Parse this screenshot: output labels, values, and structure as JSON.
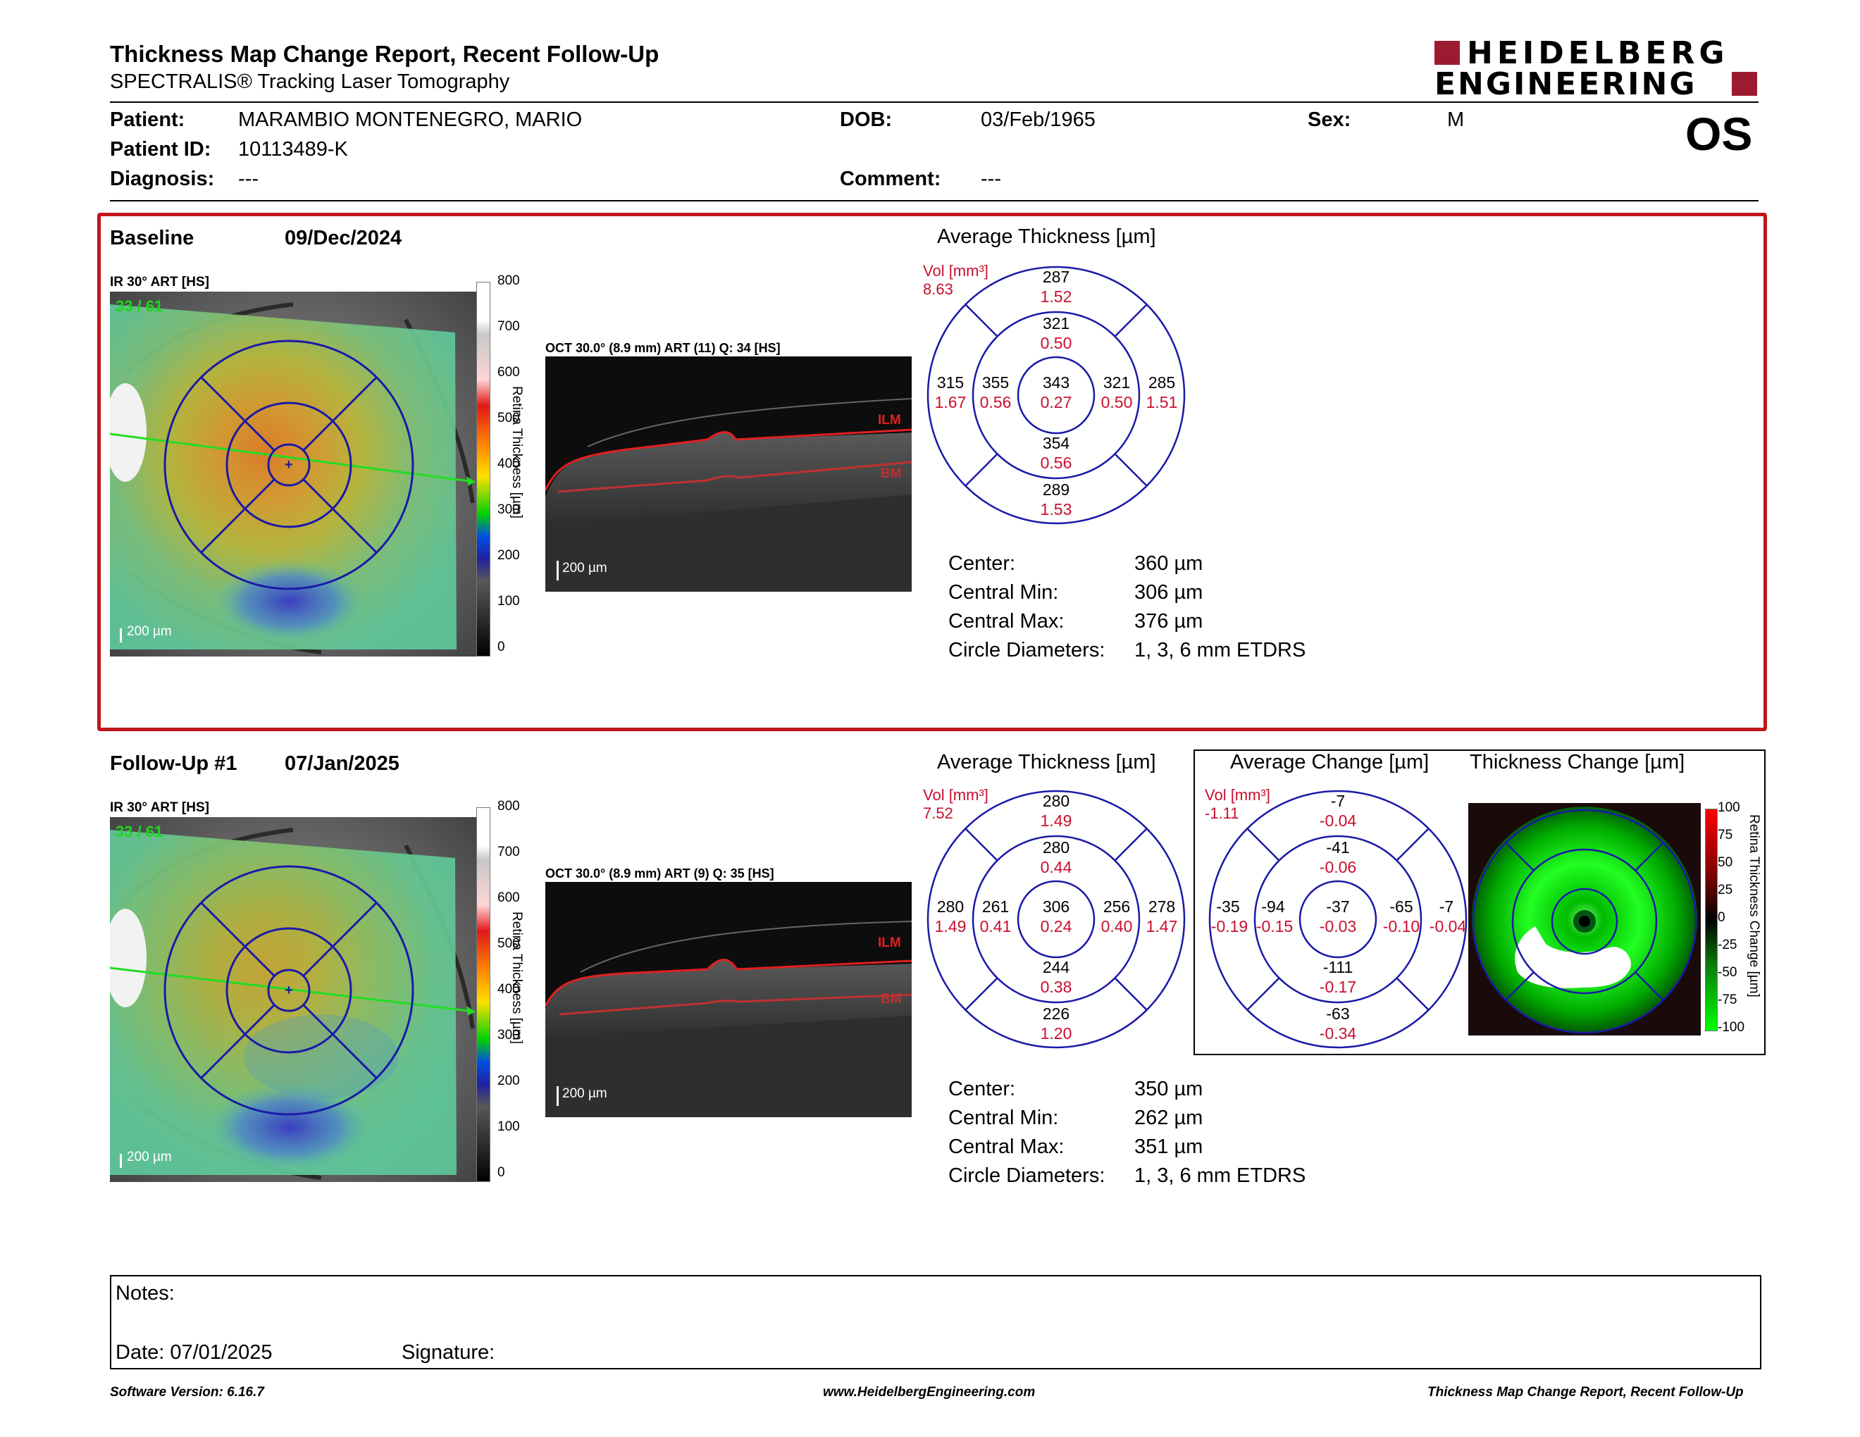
{
  "header": {
    "title": "Thickness Map Change Report, Recent Follow-Up",
    "subtitle": "SPECTRALIS® Tracking Laser Tomography",
    "brand_line1": "HEIDELBERG",
    "brand_line2": "ENGINEERING",
    "eye": "OS"
  },
  "patient": {
    "patient_label": "Patient:",
    "patient_value": "MARAMBIO MONTENEGRO, MARIO",
    "id_label": "Patient ID:",
    "id_value": "10113489-K",
    "diagnosis_label": "Diagnosis:",
    "diagnosis_value": "---",
    "dob_label": "DOB:",
    "dob_value": "03/Feb/1965",
    "comment_label": "Comment:",
    "comment_value": "---",
    "sex_label": "Sex:",
    "sex_value": "M"
  },
  "baseline": {
    "label": "Baseline",
    "date": "09/Dec/2024",
    "ir_label": "IR 30° ART [HS]",
    "ir_overlay": "33 / 61",
    "scale": "200 µm",
    "colorbar_ticks": [
      "800",
      "700",
      "600",
      "500",
      "400",
      "300",
      "200",
      "100",
      "0"
    ],
    "colorbar_title": "Retina Thickness [µm]",
    "oct_label": "OCT 30.0° (8.9 mm) ART (11) Q: 34 [HS]",
    "oct_scale": "200 µm",
    "ilm": "ILM",
    "bm": "BM",
    "avg_title": "Average Thickness [µm]",
    "vol_label": "Vol [mm³]",
    "vol_value": "8.63",
    "etdrs": {
      "outer_sup": [
        "287",
        "1.52"
      ],
      "inner_sup": [
        "321",
        "0.50"
      ],
      "outer_temp": [
        "315",
        "1.67"
      ],
      "inner_temp": [
        "355",
        "0.56"
      ],
      "center": [
        "343",
        "0.27"
      ],
      "inner_nas": [
        "321",
        "0.50"
      ],
      "outer_nas": [
        "285",
        "1.51"
      ],
      "inner_inf": [
        "354",
        "0.56"
      ],
      "outer_inf": [
        "289",
        "1.53"
      ]
    },
    "stats": [
      {
        "label": "Center:",
        "value": "360 µm"
      },
      {
        "label": "Central Min:",
        "value": "306 µm"
      },
      {
        "label": "Central Max:",
        "value": "376 µm"
      },
      {
        "label": "Circle Diameters:",
        "value": "1, 3, 6 mm ETDRS"
      }
    ]
  },
  "followup": {
    "label": "Follow-Up #1",
    "date": "07/Jan/2025",
    "ir_label": "IR 30° ART [HS]",
    "ir_overlay": "33 / 61",
    "scale": "200 µm",
    "colorbar_ticks": [
      "800",
      "700",
      "600",
      "500",
      "400",
      "300",
      "200",
      "100",
      "0"
    ],
    "colorbar_title": "Retina Thickness [µm]",
    "oct_label": "OCT 30.0° (8.9 mm) ART (9) Q: 35 [HS]",
    "oct_scale": "200 µm",
    "ilm": "ILM",
    "bm": "BM",
    "avg_title": "Average Thickness [µm]",
    "vol_label": "Vol [mm³]",
    "vol_value": "7.52",
    "etdrs": {
      "outer_sup": [
        "280",
        "1.49"
      ],
      "inner_sup": [
        "280",
        "0.44"
      ],
      "outer_temp": [
        "280",
        "1.49"
      ],
      "inner_temp": [
        "261",
        "0.41"
      ],
      "center": [
        "306",
        "0.24"
      ],
      "inner_nas": [
        "256",
        "0.40"
      ],
      "outer_nas": [
        "278",
        "1.47"
      ],
      "inner_inf": [
        "244",
        "0.38"
      ],
      "outer_inf": [
        "226",
        "1.20"
      ]
    },
    "stats": [
      {
        "label": "Center:",
        "value": "350 µm"
      },
      {
        "label": "Central Min:",
        "value": "262 µm"
      },
      {
        "label": "Central Max:",
        "value": "351 µm"
      },
      {
        "label": "Circle Diameters:",
        "value": "1, 3, 6 mm ETDRS"
      }
    ],
    "change_title": "Average Change [µm]",
    "change_vol_label": "Vol [mm³]",
    "change_vol_value": "-1.11",
    "change": {
      "outer_sup": [
        "-7",
        "-0.04"
      ],
      "inner_sup": [
        "-41",
        "-0.06"
      ],
      "outer_temp": [
        "-35",
        "-0.19"
      ],
      "inner_temp": [
        "-94",
        "-0.15"
      ],
      "center": [
        "-37",
        "-0.03"
      ],
      "inner_nas": [
        "-65",
        "-0.10"
      ],
      "outer_nas": [
        "-7",
        "-0.04"
      ],
      "inner_inf": [
        "-111",
        "-0.17"
      ],
      "outer_inf": [
        "-63",
        "-0.34"
      ]
    },
    "thickness_change_title": "Thickness Change [µm]",
    "change_bar_ticks": [
      "100",
      "75",
      "50",
      "25",
      "0",
      "-25",
      "-50",
      "-75",
      "-100"
    ],
    "change_bar_title": "Retina Thickness Change [µm]"
  },
  "notes": {
    "notes_label": "Notes:",
    "date_label": "Date: 07/01/2025",
    "signature_label": "Signature:"
  },
  "footer": {
    "left": "Software Version: 6.16.7",
    "center": "www.HeidelbergEngineering.com",
    "right": "Thickness Map Change Report, Recent Follow-Up"
  },
  "colors": {
    "etdrs_blue": "#1a1aa8",
    "accent_red": "#c8102e",
    "brand_red": "#9c1b30",
    "section_border": "#c0161c"
  }
}
